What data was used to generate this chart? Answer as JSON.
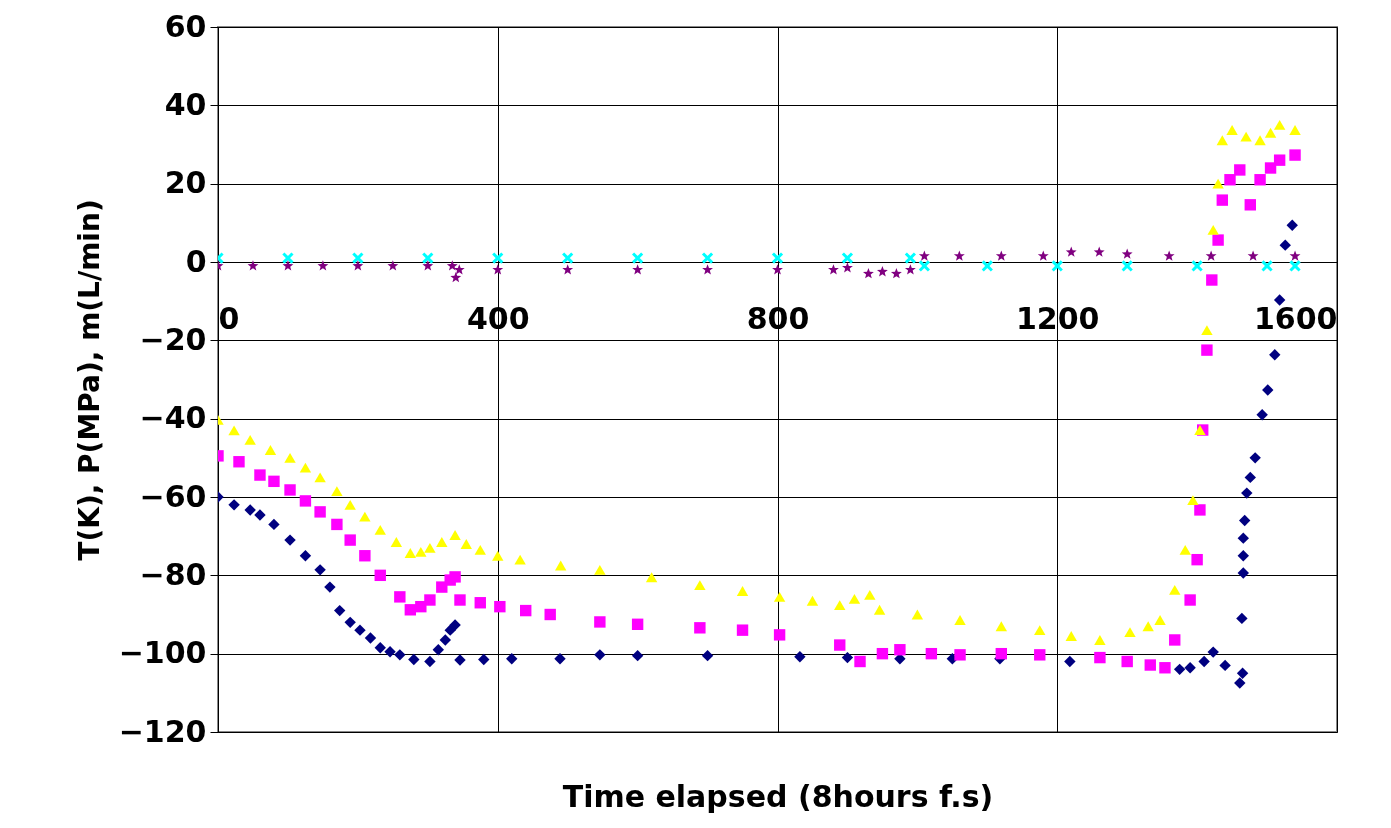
{
  "chart_data": {
    "type": "scatter",
    "xlabel": "Time elapsed (8hours f.s)",
    "ylabel": "T(K), P(MPa), m(L/min)",
    "xlim": [
      0,
      1600
    ],
    "ylim": [
      -120,
      60
    ],
    "xticks": [
      0,
      400,
      800,
      1200,
      1600
    ],
    "yticks": [
      -120,
      -100,
      -80,
      -60,
      -40,
      -20,
      0,
      20,
      40,
      60
    ],
    "grid": true,
    "series": [
      {
        "color": "#000080",
        "marker": "diamond",
        "x": [
          0,
          23,
          46,
          60,
          80,
          103,
          125,
          146,
          160,
          174,
          189,
          203,
          218,
          232,
          246,
          260,
          280,
          303,
          315,
          325,
          332,
          339,
          346,
          380,
          420,
          489,
          546,
          600,
          700,
          832,
          900,
          975,
          1050,
          1118,
          1218,
          1300,
          1375,
          1390,
          1410,
          1423,
          1440,
          1461,
          1465,
          1464,
          1466,
          1466,
          1466,
          1468,
          1471,
          1476,
          1483,
          1493,
          1501,
          1511,
          1518,
          1526,
          1536
        ],
        "values": [
          -60,
          -62,
          -63.3,
          -64.6,
          -67,
          -71,
          -75,
          -78.6,
          -83,
          -89,
          -92,
          -94,
          -96,
          -98.5,
          -99.5,
          -100.3,
          -101.5,
          -102,
          -99,
          -96.5,
          -94,
          -92.7,
          -101.6,
          -101.5,
          -101.3,
          -101.3,
          -100.3,
          -100.5,
          -100.5,
          -100.8,
          -101,
          -101.3,
          -101.3,
          -101.3,
          -102,
          null,
          -104,
          -103.6,
          -102,
          -99.6,
          -103,
          -107.5,
          -105,
          -91,
          -79.4,
          -75,
          -70.5,
          -66,
          -59,
          -55,
          -50,
          -39,
          -32.7,
          -23.7,
          -9.7,
          4.3,
          9.4
        ]
      },
      {
        "color": "#ff00ff",
        "marker": "square",
        "x": [
          0,
          30,
          60,
          80,
          103,
          125,
          146,
          170,
          189,
          210,
          232,
          260,
          275,
          290,
          303,
          320,
          332,
          339,
          346,
          375,
          403,
          440,
          475,
          546,
          600,
          689,
          750,
          803,
          889,
          918,
          950,
          975,
          1020,
          1061,
          1120,
          1175,
          1261,
          1300,
          1333,
          1354,
          1368,
          1390,
          1400,
          1404,
          1408,
          1414,
          1421,
          1430,
          1436,
          1447,
          1461,
          1476,
          1490,
          1505,
          1518,
          1540
        ],
        "values": [
          -49.5,
          -51,
          -54.4,
          -56,
          -58.2,
          -61,
          -63.8,
          -67,
          -71,
          -75,
          -80,
          -85.5,
          -88.8,
          -88,
          -86.3,
          -83,
          -81.2,
          -80.4,
          -86.3,
          -87,
          -88,
          -89,
          -90,
          -91.9,
          -92.5,
          -93.4,
          -94,
          -95.2,
          -97.8,
          -102,
          -100,
          -99,
          -100,
          -100.3,
          -100,
          -100.3,
          -101,
          -102,
          -102.9,
          -103.6,
          -96.5,
          -86.3,
          -76,
          -63.3,
          -42.9,
          -22.5,
          -4.6,
          5.6,
          15.8,
          21,
          23.5,
          14.6,
          21,
          24,
          26,
          27.3
        ]
      },
      {
        "color": "#ffff00",
        "marker": "triangle",
        "x": [
          0,
          23,
          46,
          75,
          103,
          125,
          146,
          170,
          189,
          210,
          232,
          255,
          275,
          290,
          303,
          320,
          339,
          355,
          375,
          400,
          432,
          490,
          546,
          620,
          689,
          750,
          803,
          850,
          889,
          910,
          932,
          946,
          1000,
          1061,
          1120,
          1175,
          1220,
          1261,
          1304,
          1330,
          1347,
          1368,
          1383,
          1394,
          1404,
          1414,
          1423,
          1430,
          1436,
          1450,
          1470,
          1490,
          1505,
          1518,
          1540
        ],
        "values": [
          -40.3,
          -43,
          -45.4,
          -48,
          -50,
          -52.5,
          -55,
          -58.5,
          -62,
          -65,
          -68.4,
          -71.5,
          -74.3,
          -74,
          -73,
          -71.5,
          -69.7,
          -72,
          -73.5,
          -75,
          -76,
          -77.5,
          -78.6,
          -80.5,
          -82.5,
          -84,
          -85.5,
          -86.5,
          -87.6,
          -86,
          -85,
          -88.8,
          -90,
          -91.4,
          -93,
          -94,
          -95.5,
          -96.5,
          -94.5,
          -93,
          -91.4,
          -83.7,
          -73.5,
          -60.8,
          -42.9,
          -17.4,
          8.2,
          20,
          31.1,
          33.7,
          32,
          31.1,
          33,
          35,
          33.7
        ]
      },
      {
        "color": "#00ffff",
        "marker": "cross",
        "x": [
          0,
          100,
          200,
          300,
          400,
          500,
          600,
          700,
          800,
          900,
          990,
          1010,
          1100,
          1200,
          1300,
          1400,
          1500,
          1540
        ],
        "values": [
          1,
          1,
          1,
          1,
          1,
          1,
          1,
          1,
          1,
          1,
          1,
          -1,
          -1,
          -1,
          -1,
          -1,
          -1,
          -1
        ]
      },
      {
        "color": "#800080",
        "marker": "star",
        "x": [
          0,
          50,
          100,
          150,
          200,
          250,
          300,
          335,
          340,
          345,
          400,
          500,
          600,
          700,
          800,
          880,
          900,
          930,
          950,
          970,
          990,
          1010,
          1060,
          1120,
          1180,
          1220,
          1260,
          1300,
          1360,
          1420,
          1480,
          1540
        ],
        "values": [
          -1,
          -1,
          -1,
          -1,
          -1,
          -1,
          -1,
          -1,
          -4,
          -2,
          -2,
          -2,
          -2,
          -2,
          -2,
          -2,
          -1.5,
          -3,
          -2.5,
          -3,
          -2,
          1.5,
          1.5,
          1.5,
          1.5,
          2.5,
          2.5,
          2,
          1.5,
          1.5,
          1.5,
          1.5
        ]
      }
    ]
  }
}
